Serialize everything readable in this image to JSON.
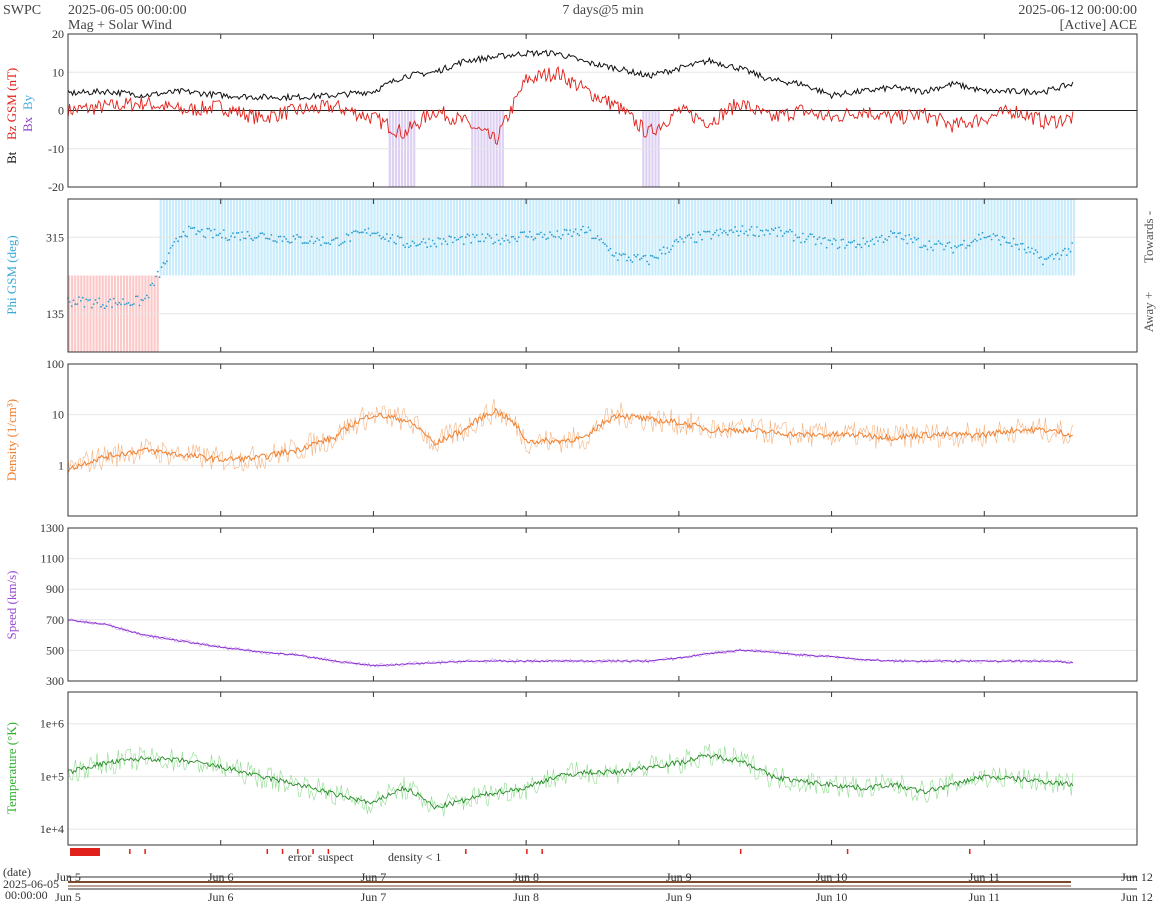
{
  "header": {
    "brand": "SWPC",
    "start": "2025-06-05 00:00:00",
    "subtitle": "Mag + Solar Wind",
    "span": "7 days@5 min",
    "end": "2025-06-12 00:00:00",
    "source": "[Active] ACE"
  },
  "x_axis": {
    "ticks": [
      "Jun 5",
      "Jun 6",
      "Jun 7",
      "Jun 8",
      "Jun 9",
      "Jun 10",
      "Jun 11",
      "Jun 12"
    ],
    "date_label": "(date)",
    "date_start_1": "2025-06-05",
    "date_start_2": "00:00:00"
  },
  "legend": {
    "error": "error",
    "suspect": "suspect",
    "density": "density < 1",
    "error_color": "#e0201a",
    "suspect_color": "#f2b400",
    "density_color": "#f08030"
  },
  "chart_data": [
    {
      "type": "line",
      "panel": "mag",
      "ylabel_bt": "Bt",
      "ylabel_bz": "Bz GSM (nT)",
      "ylabel_by": "By",
      "ylabel_bx": "Bx",
      "ylim": [
        -20,
        20
      ],
      "yticks": [
        "20",
        "10",
        "0",
        "-10",
        "-20"
      ],
      "x_days": [
        0,
        0.25,
        0.5,
        0.75,
        1.0,
        1.25,
        1.5,
        1.75,
        2.0,
        2.2,
        2.4,
        2.6,
        2.8,
        3.0,
        3.2,
        3.4,
        3.6,
        3.8,
        4.0,
        4.2,
        4.4,
        4.6,
        4.8,
        5.0,
        5.2,
        5.4,
        5.6,
        5.8,
        6.0,
        6.2,
        6.4,
        6.58
      ],
      "series": [
        {
          "name": "Bt",
          "color": "#111111",
          "values": [
            4.5,
            5,
            4,
            5,
            4,
            3.5,
            3.5,
            4,
            5,
            9,
            10,
            13,
            14,
            15,
            15,
            12.5,
            11,
            9,
            11,
            13,
            11,
            8,
            7,
            4,
            5,
            6,
            5,
            7,
            5,
            5,
            5,
            7
          ]
        },
        {
          "name": "Bz GSM",
          "color": "#e0201a",
          "values": [
            0,
            1,
            2,
            0,
            1,
            -2,
            0,
            1,
            -2,
            -6,
            0,
            -3,
            -8,
            8,
            10,
            5,
            1,
            -6,
            0,
            -3,
            2,
            -2,
            0,
            -2,
            0,
            -2,
            -1,
            -4,
            -2,
            0,
            -3,
            -2
          ]
        }
      ]
    },
    {
      "type": "scatter",
      "panel": "phi",
      "ylabel": "Phi GSM (deg)",
      "label_towards": "Towards -",
      "label_away": "Away +",
      "ylim": [
        45,
        405
      ],
      "yticks": [
        "315",
        "135"
      ],
      "x_days": [
        0,
        0.25,
        0.5,
        0.75,
        1.0,
        1.25,
        1.5,
        1.75,
        2.0,
        2.2,
        2.4,
        2.6,
        2.8,
        3.0,
        3.2,
        3.4,
        3.6,
        3.8,
        4.0,
        4.2,
        4.4,
        4.6,
        4.8,
        5.0,
        5.2,
        5.4,
        5.6,
        5.8,
        6.0,
        6.2,
        6.4,
        6.58
      ],
      "values": [
        165,
        160,
        165,
        330,
        320,
        320,
        310,
        305,
        330,
        300,
        305,
        310,
        310,
        320,
        318,
        330,
        270,
        260,
        305,
        320,
        330,
        330,
        315,
        300,
        300,
        320,
        300,
        290,
        320,
        300,
        260,
        290
      ],
      "towards_color": "#c8ecfb",
      "away_color": "#fcc9c9"
    },
    {
      "type": "line",
      "panel": "density",
      "ylabel": "Density (1/cm³)",
      "scale": "log",
      "ylim": [
        0.1,
        100
      ],
      "yticks": [
        "100",
        "10",
        "1"
      ],
      "x_days": [
        0,
        0.25,
        0.5,
        0.75,
        1.0,
        1.25,
        1.5,
        1.75,
        2.0,
        2.2,
        2.4,
        2.6,
        2.8,
        3.0,
        3.2,
        3.4,
        3.6,
        3.8,
        4.0,
        4.2,
        4.4,
        4.6,
        4.8,
        5.0,
        5.2,
        5.4,
        5.6,
        5.8,
        6.0,
        6.2,
        6.4,
        6.58
      ],
      "values": [
        0.8,
        1.5,
        2.0,
        1.6,
        1.3,
        1.4,
        2.0,
        3.5,
        10,
        8,
        2.5,
        5,
        12,
        3,
        3,
        3.5,
        10,
        8,
        7,
        5,
        5,
        4.5,
        4,
        4,
        4,
        3.5,
        4,
        4,
        4,
        5,
        5,
        4
      ]
    },
    {
      "type": "line",
      "panel": "speed",
      "ylabel": "Speed (km/s)",
      "ylim": [
        300,
        1300
      ],
      "yticks": [
        "1300",
        "1100",
        "900",
        "700",
        "500",
        "300"
      ],
      "x_days": [
        0,
        0.25,
        0.5,
        0.75,
        1.0,
        1.25,
        1.5,
        1.75,
        2.0,
        2.2,
        2.4,
        2.6,
        2.8,
        3.0,
        3.2,
        3.4,
        3.6,
        3.8,
        4.0,
        4.2,
        4.4,
        4.6,
        4.8,
        5.0,
        5.2,
        5.4,
        5.6,
        5.8,
        6.0,
        6.2,
        6.4,
        6.58
      ],
      "values": [
        700,
        670,
        600,
        560,
        520,
        490,
        470,
        430,
        400,
        410,
        420,
        430,
        430,
        430,
        430,
        430,
        430,
        430,
        450,
        480,
        500,
        490,
        470,
        460,
        440,
        430,
        430,
        430,
        430,
        430,
        430,
        420
      ]
    },
    {
      "type": "line",
      "panel": "temperature",
      "ylabel": "Temperature (°K)",
      "scale": "log",
      "ylim": [
        5000,
        4000000
      ],
      "yticks": [
        "1e+6",
        "1e+5",
        "1e+4"
      ],
      "x_days": [
        0,
        0.25,
        0.5,
        0.75,
        1.0,
        1.25,
        1.5,
        1.75,
        2.0,
        2.2,
        2.4,
        2.6,
        2.8,
        3.0,
        3.2,
        3.4,
        3.6,
        3.8,
        4.0,
        4.2,
        4.4,
        4.6,
        4.8,
        5.0,
        5.2,
        5.4,
        5.6,
        5.8,
        6.0,
        6.2,
        6.4,
        6.58
      ],
      "values": [
        120000,
        180000,
        220000,
        200000,
        150000,
        100000,
        70000,
        45000,
        30000,
        60000,
        25000,
        35000,
        50000,
        60000,
        100000,
        120000,
        120000,
        150000,
        180000,
        250000,
        200000,
        100000,
        80000,
        70000,
        60000,
        70000,
        50000,
        70000,
        100000,
        90000,
        80000,
        70000
      ]
    }
  ]
}
